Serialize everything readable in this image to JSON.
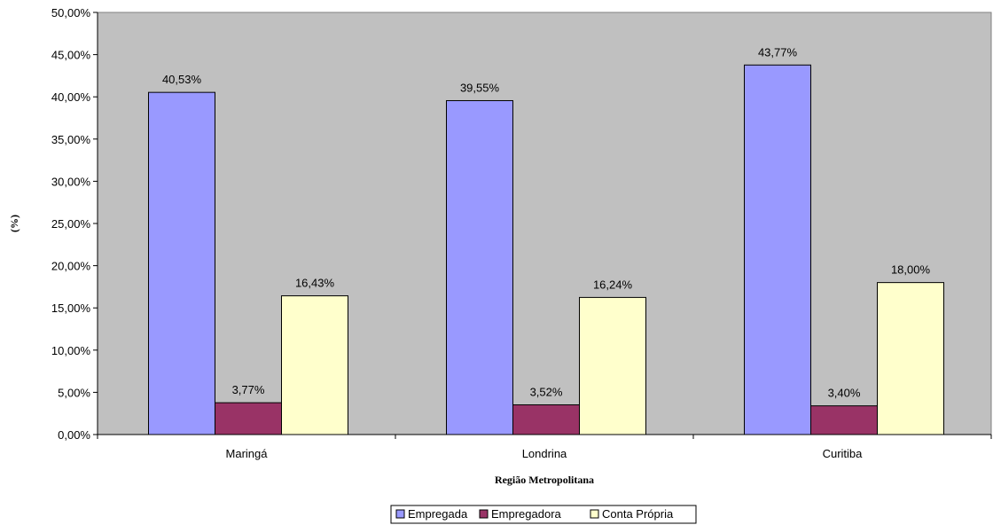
{
  "chart_data": {
    "type": "bar",
    "categories": [
      "Maringá",
      "Londrina",
      "Curitiba"
    ],
    "series": [
      {
        "name": "Empregada",
        "values": [
          40.53,
          39.55,
          43.77
        ],
        "labels": [
          "40,53%",
          "39,55%",
          "43,77%"
        ],
        "color": "#9999FF"
      },
      {
        "name": "Empregadora",
        "values": [
          3.77,
          3.52,
          3.4
        ],
        "labels": [
          "3,77%",
          "3,52%",
          "3,40%"
        ],
        "color": "#993366"
      },
      {
        "name": "Conta Própria",
        "values": [
          16.43,
          16.24,
          18.0
        ],
        "labels": [
          "16,43%",
          "16,24%",
          "18,00%"
        ],
        "color": "#FFFFCC"
      }
    ],
    "ylim": [
      0,
      50
    ],
    "yticks": [
      0,
      5,
      10,
      15,
      20,
      25,
      30,
      35,
      40,
      45,
      50
    ],
    "ytick_labels": [
      "0,00%",
      "5,00%",
      "10,00%",
      "15,00%",
      "20,00%",
      "25,00%",
      "30,00%",
      "35,00%",
      "40,00%",
      "45,00%",
      "50,00%"
    ],
    "xlabel": "Região Metropolitana",
    "ylabel": "(%)",
    "legend_position": "bottom",
    "plot_background": "#C0C0C0",
    "grid": false
  }
}
